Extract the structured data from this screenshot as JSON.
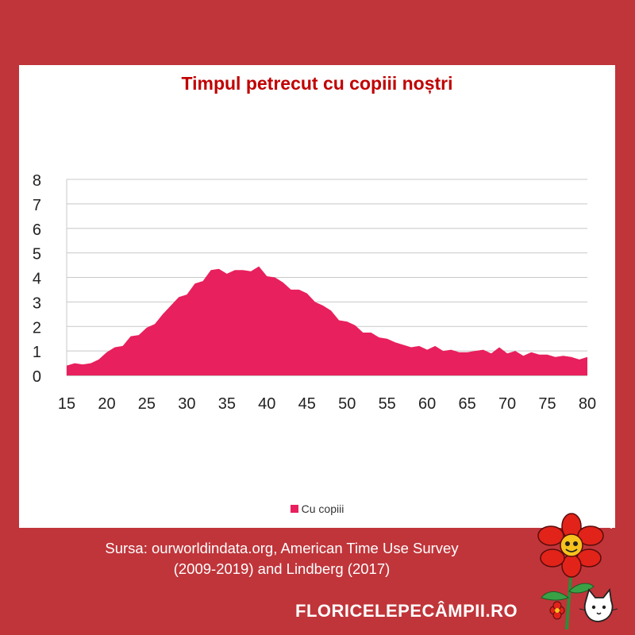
{
  "chart_data": {
    "type": "area",
    "title": "Timpul petrecut cu copiii noștri",
    "legend": "bottom",
    "grid": true,
    "xlim": [
      15,
      80
    ],
    "ylim": [
      0,
      8
    ],
    "x_ticks": [
      15,
      20,
      25,
      30,
      35,
      40,
      45,
      50,
      55,
      60,
      65,
      70,
      75,
      80
    ],
    "y_ticks": [
      0,
      1,
      2,
      3,
      4,
      5,
      6,
      7,
      8
    ],
    "series": [
      {
        "name": "Cu copiii",
        "color": "#e8205d",
        "x": [
          15,
          16,
          17,
          18,
          19,
          20,
          21,
          22,
          23,
          24,
          25,
          26,
          27,
          28,
          29,
          30,
          31,
          32,
          33,
          34,
          35,
          36,
          37,
          38,
          39,
          40,
          41,
          42,
          43,
          44,
          45,
          46,
          47,
          48,
          49,
          50,
          51,
          52,
          53,
          54,
          55,
          56,
          57,
          58,
          59,
          60,
          61,
          62,
          63,
          64,
          65,
          66,
          67,
          68,
          69,
          70,
          71,
          72,
          73,
          74,
          75,
          76,
          77,
          78,
          79,
          80
        ],
        "values": [
          0.4,
          0.5,
          0.45,
          0.5,
          0.65,
          0.95,
          1.15,
          1.2,
          1.6,
          1.65,
          1.95,
          2.1,
          2.5,
          2.85,
          3.2,
          3.3,
          3.75,
          3.85,
          4.3,
          4.35,
          4.15,
          4.3,
          4.3,
          4.25,
          4.45,
          4.05,
          4.0,
          3.8,
          3.5,
          3.5,
          3.35,
          3.0,
          2.85,
          2.65,
          2.25,
          2.2,
          2.05,
          1.75,
          1.75,
          1.55,
          1.5,
          1.35,
          1.25,
          1.15,
          1.2,
          1.05,
          1.2,
          1.0,
          1.05,
          0.95,
          0.95,
          1.0,
          1.05,
          0.9,
          1.15,
          0.9,
          1.0,
          0.8,
          0.95,
          0.85,
          0.85,
          0.75,
          0.8,
          0.75,
          0.65,
          0.75
        ]
      }
    ]
  },
  "source": {
    "line1": "Sursa: ourworldindata.org, American Time Use Survey",
    "line2": "(2009-2019) and Lindberg (2017)"
  },
  "brand": "FLORICELEPECÂMPII.RO"
}
